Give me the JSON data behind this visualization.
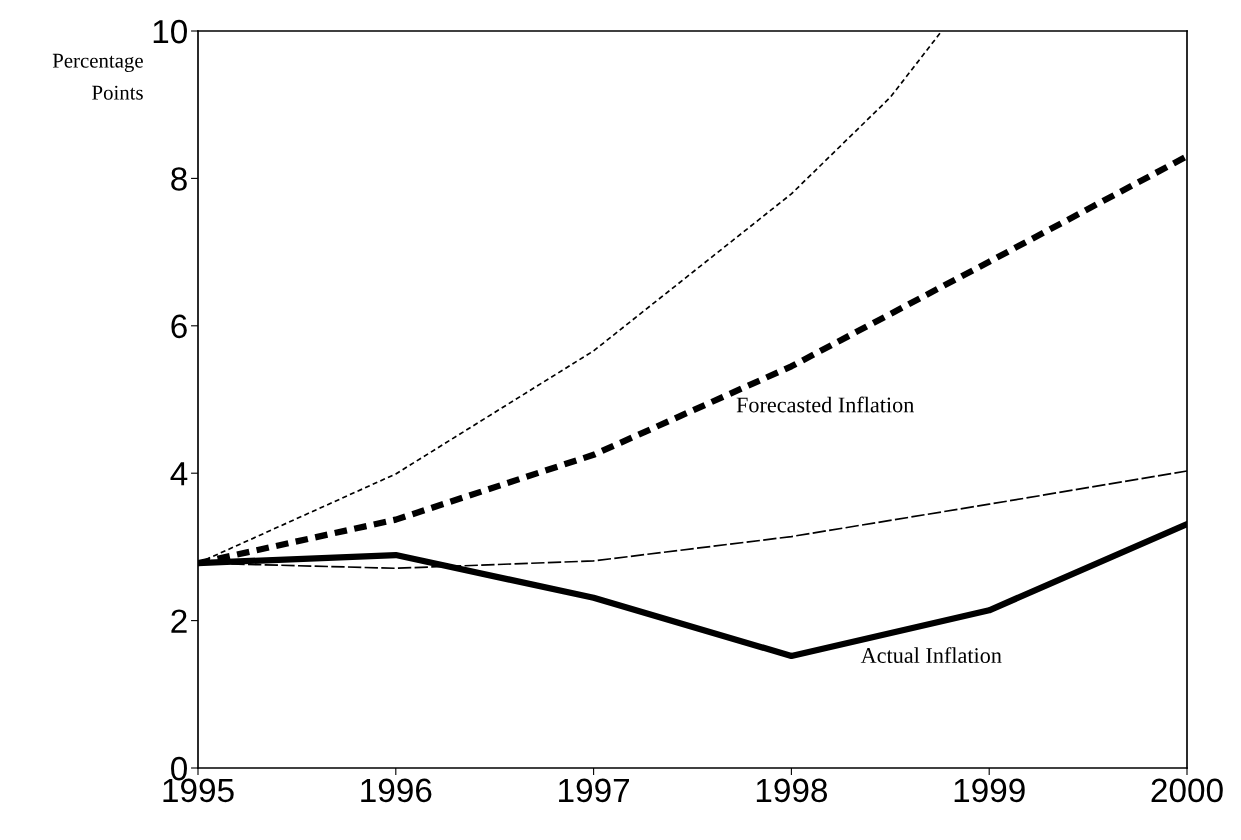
{
  "chart_data": {
    "type": "line",
    "ylabel": "Percentage\nPoints",
    "xlim": [
      1995,
      2000
    ],
    "xticks": [
      1995,
      1996,
      1997,
      1998,
      1999,
      2000
    ],
    "ylim": [
      0,
      10
    ],
    "yticks": [
      0,
      2,
      4,
      6,
      8,
      10
    ],
    "grid": false,
    "legend": false,
    "marker": "none",
    "series": [
      {
        "color": "#000000",
        "line_style": "dashed",
        "x": [
          1995,
          1996,
          1997,
          1998,
          1998.5,
          1998.76
        ],
        "values": [
          2.78,
          3.99,
          5.66,
          7.79,
          9.1,
          10.0
        ]
      },
      {
        "color": "#000000",
        "line_style": "dashed",
        "x": [
          1995,
          1996,
          1997,
          1998,
          1999,
          2000
        ],
        "values": [
          2.78,
          3.37,
          4.25,
          5.45,
          6.87,
          8.3
        ]
      },
      {
        "color": "#000000",
        "line_style": "dashed",
        "x": [
          1995,
          1996,
          1997,
          1998,
          1999,
          2000
        ],
        "values": [
          2.78,
          2.71,
          2.81,
          3.14,
          3.58,
          4.03
        ]
      },
      {
        "color": "#000000",
        "line_style": "solid",
        "x": [
          1995,
          1996,
          1997,
          1998,
          1999,
          2000
        ],
        "values": [
          2.78,
          2.89,
          2.31,
          1.52,
          2.14,
          3.31
        ]
      }
    ],
    "annotations": [
      "Forecasted Inflation",
      "Actual Inflation"
    ]
  }
}
